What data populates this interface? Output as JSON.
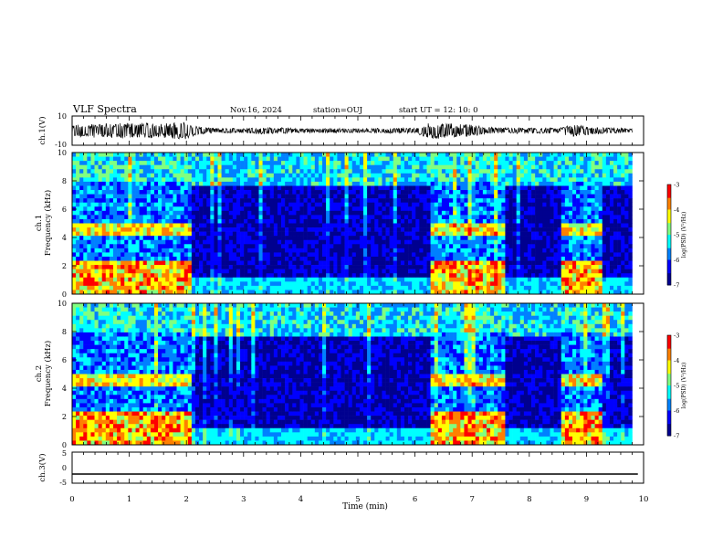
{
  "header": {
    "title": "VLF Spectra",
    "date": "Nov.16, 2024",
    "station": "station=OUJ",
    "start": "start UT =  12: 10: 0"
  },
  "chart_data": [
    {
      "type": "line",
      "panel": "ch1-waveform",
      "ylabel": "ch.1(V)",
      "yticks": [
        "10",
        "-10"
      ],
      "ylim": [
        -10,
        10
      ],
      "xlim": [
        0,
        10
      ],
      "envelope": [
        [
          0,
          4
        ],
        [
          0.5,
          5
        ],
        [
          1.0,
          5.5
        ],
        [
          1.5,
          5
        ],
        [
          2.0,
          6
        ],
        [
          2.2,
          3
        ],
        [
          2.5,
          1.5
        ],
        [
          3.0,
          1.8
        ],
        [
          3.3,
          2.5
        ],
        [
          4.0,
          1.5
        ],
        [
          5.0,
          1.5
        ],
        [
          6.0,
          1.8
        ],
        [
          6.3,
          6
        ],
        [
          6.6,
          5
        ],
        [
          7.0,
          4
        ],
        [
          7.4,
          2
        ],
        [
          7.6,
          2
        ],
        [
          8.5,
          2
        ],
        [
          8.8,
          4.5
        ],
        [
          9.0,
          3
        ],
        [
          9.3,
          2
        ],
        [
          9.8,
          1.5
        ]
      ]
    },
    {
      "type": "heatmap",
      "panel": "ch1-spectrogram",
      "ylabel_line1": "ch.1",
      "ylabel_line2": "Frequency (kHz)",
      "yticks": [
        "0",
        "2",
        "4",
        "6",
        "8",
        "10"
      ],
      "ylim": [
        0,
        10
      ],
      "xlim": [
        0,
        10
      ],
      "colorbar_label": "log(PSD) (V²/Hz)",
      "colorbar_ticks": [
        "-3",
        "-4",
        "-5",
        "-6",
        "-7"
      ],
      "crange": [
        -7,
        -3
      ],
      "active_intervals": [
        [
          0,
          2.1
        ],
        [
          6.3,
          7.6
        ],
        [
          8.55,
          9.25
        ]
      ]
    },
    {
      "type": "heatmap",
      "panel": "ch2-spectrogram",
      "ylabel_line1": "ch.2",
      "ylabel_line2": "Frequency (kHz)",
      "yticks": [
        "0",
        "2",
        "4",
        "6",
        "8",
        "10"
      ],
      "ylim": [
        0,
        10
      ],
      "xlim": [
        0,
        10
      ],
      "colorbar_label": "log(PSD) (V²/Hz)",
      "colorbar_ticks": [
        "-3",
        "-4",
        "-5",
        "-6",
        "-7"
      ],
      "crange": [
        -7,
        -3
      ],
      "active_intervals": [
        [
          0,
          2.1
        ],
        [
          6.3,
          7.6
        ],
        [
          8.55,
          9.25
        ]
      ]
    },
    {
      "type": "line",
      "panel": "ch3-waveform",
      "ylabel": "ch.3(V)",
      "yticks": [
        "5",
        "0",
        "-5"
      ],
      "ylim": [
        -5,
        5
      ],
      "xlim": [
        0,
        10
      ],
      "level": -2.2
    }
  ],
  "xaxis": {
    "label": "Time (min)",
    "ticks": [
      "0",
      "1",
      "2",
      "3",
      "4",
      "5",
      "6",
      "7",
      "8",
      "9",
      "10"
    ]
  },
  "colors": {
    "colormap": [
      "#00008f",
      "#0000ff",
      "#0080ff",
      "#00ffff",
      "#80ff80",
      "#ffff00",
      "#ff8000",
      "#ff0000",
      "#ffffff"
    ]
  }
}
